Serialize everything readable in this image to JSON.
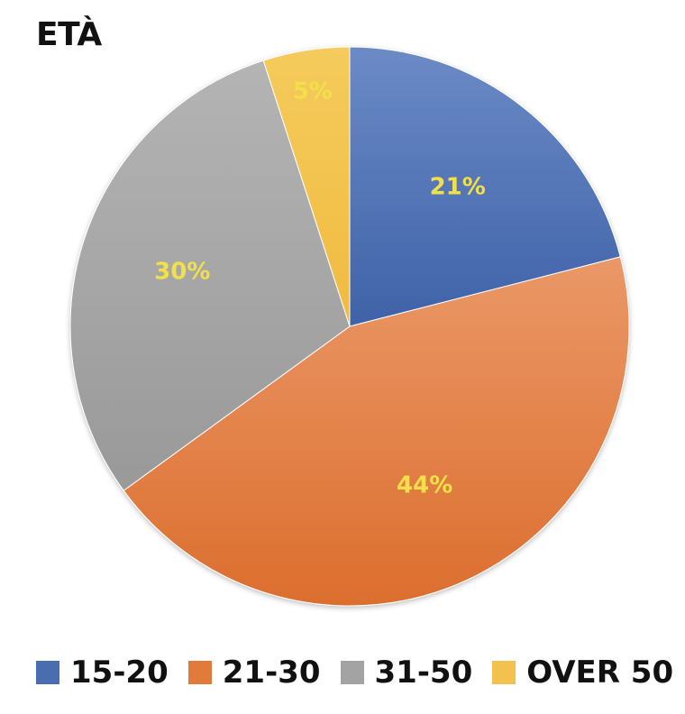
{
  "chart_data": {
    "type": "pie",
    "title": "ETÀ",
    "categories": [
      "15-20",
      "21-30",
      "31-50",
      "OVER 50"
    ],
    "values": [
      21,
      44,
      30,
      5
    ],
    "labels": [
      "21%",
      "44%",
      "30%",
      "5%"
    ],
    "colors": [
      "#4a6db0",
      "#e07b3c",
      "#a3a3a3",
      "#f2c14e"
    ],
    "label_color": "#f2e04a",
    "legend_position": "bottom"
  }
}
